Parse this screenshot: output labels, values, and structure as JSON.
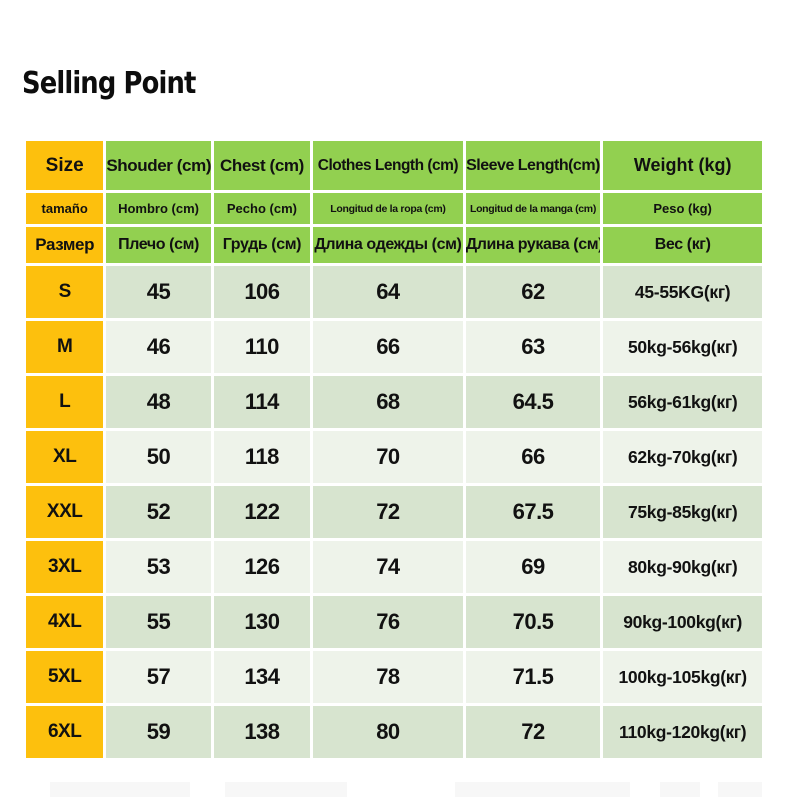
{
  "title": "Selling Point",
  "colors": {
    "header_green": "#92d050",
    "size_column_yellow": "#fdc00d",
    "row_green": "#d7e4cf",
    "row_light": "#eef3ea",
    "text": "#111111",
    "background": "#ffffff"
  },
  "size_chart": {
    "header_rows": {
      "english": [
        "Size",
        "Shouder (cm)",
        "Chest (cm)",
        "Clothes Length (cm)",
        "Sleeve Length(cm)",
        "Weight (kg)"
      ],
      "spanish": [
        "tamaño",
        "Hombro (cm)",
        "Pecho (cm)",
        "Longitud de la ropa (cm)",
        "Longitud de la manga (cm)",
        "Peso (kg)"
      ],
      "russian": [
        "Размер",
        "Плечо (см)",
        "Грудь (см)",
        "Длина одежды (см)",
        "Длина рукава (см)",
        "Вес (кг)"
      ]
    },
    "rows": [
      [
        "S",
        "45",
        "106",
        "64",
        "62",
        "45-55KG(кг)"
      ],
      [
        "M",
        "46",
        "110",
        "66",
        "63",
        "50kg-56kg(кг)"
      ],
      [
        "L",
        "48",
        "114",
        "68",
        "64.5",
        "56kg-61kg(кг)"
      ],
      [
        "XL",
        "50",
        "118",
        "70",
        "66",
        "62kg-70kg(кг)"
      ],
      [
        "XXL",
        "52",
        "122",
        "72",
        "67.5",
        "75kg-85kg(кг)"
      ],
      [
        "3XL",
        "53",
        "126",
        "74",
        "69",
        "80kg-90kg(кг)"
      ],
      [
        "4XL",
        "55",
        "130",
        "76",
        "70.5",
        "90kg-100kg(кг)"
      ],
      [
        "5XL",
        "57",
        "134",
        "78",
        "71.5",
        "100kg-105kg(кг)"
      ],
      [
        "6XL",
        "59",
        "138",
        "80",
        "72",
        "110kg-120kg(кг)"
      ]
    ]
  }
}
